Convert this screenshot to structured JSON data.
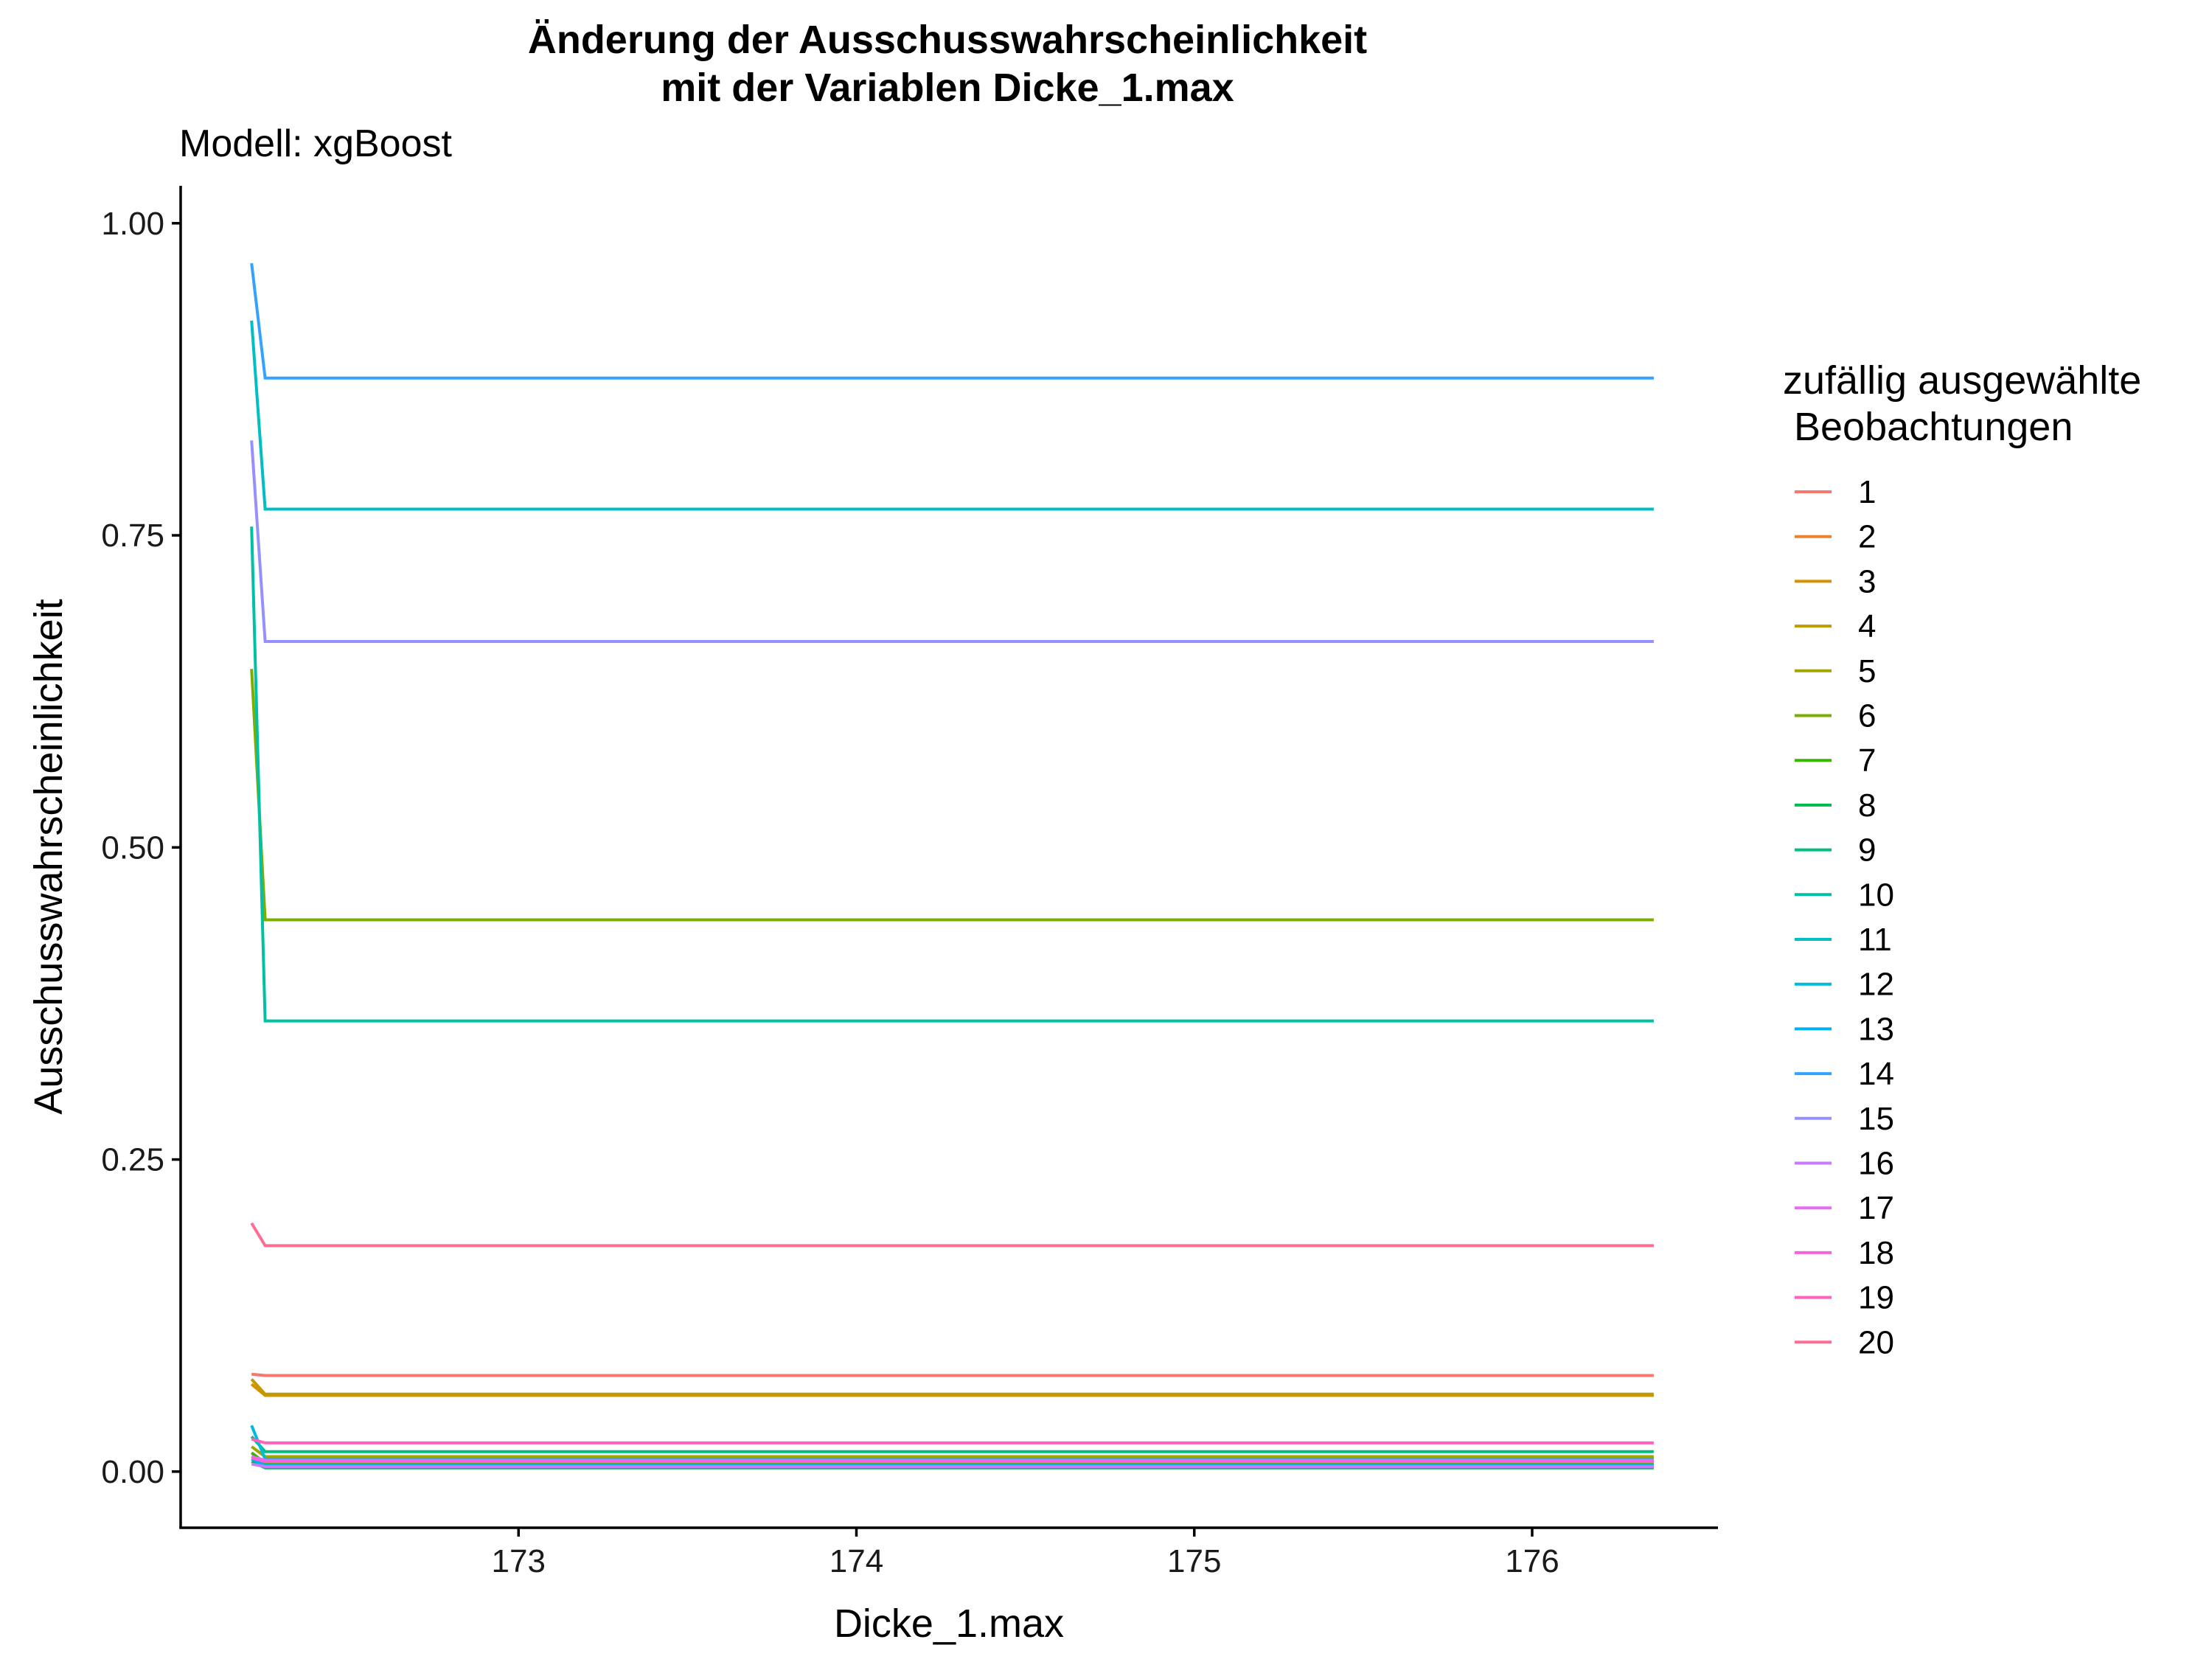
{
  "chart_data": {
    "type": "line",
    "title_lines": [
      "Änderung der Ausschusswahrscheinlichkeit",
      "mit der Variablen Dicke_1.max"
    ],
    "subtitle": "Modell: xgBoost",
    "xlabel": "Dicke_1.max",
    "ylabel": "Ausschusswahrscheinlichkeit",
    "xlim": [
      172.0,
      176.55
    ],
    "ylim": [
      -0.045,
      1.03
    ],
    "x_ticks": [
      173,
      174,
      175,
      176
    ],
    "x_tick_labels": [
      "173",
      "174",
      "175",
      "176"
    ],
    "y_ticks": [
      0.0,
      0.25,
      0.5,
      0.75,
      1.0
    ],
    "y_tick_labels": [
      "0.00",
      "0.25",
      "0.50",
      "0.75",
      "1.00"
    ],
    "grid": false,
    "legend_position": "right",
    "legend_title_lines": [
      "zufällig ausgewählte",
      " Beobachtungen"
    ],
    "x": [
      172.21,
      172.25,
      176.36
    ],
    "series": [
      {
        "name": "1",
        "color": "#F8766D",
        "values": [
          0.078,
          0.077,
          0.077
        ]
      },
      {
        "name": "2",
        "color": "#EA8331",
        "values": [
          0.012,
          0.006,
          0.006
        ]
      },
      {
        "name": "3",
        "color": "#D89000",
        "values": [
          0.07,
          0.061,
          0.061
        ]
      },
      {
        "name": "4",
        "color": "#C09B00",
        "values": [
          0.074,
          0.062,
          0.062
        ]
      },
      {
        "name": "5",
        "color": "#A3A500",
        "values": [
          0.02,
          0.012,
          0.012
        ]
      },
      {
        "name": "6",
        "color": "#7CAE00",
        "values": [
          0.643,
          0.442,
          0.442
        ]
      },
      {
        "name": "7",
        "color": "#39B600",
        "values": [
          0.015,
          0.007,
          0.007
        ]
      },
      {
        "name": "8",
        "color": "#00BB4E",
        "values": [
          0.008,
          0.003,
          0.003
        ]
      },
      {
        "name": "9",
        "color": "#00BF7D",
        "values": [
          0.028,
          0.016,
          0.016
        ]
      },
      {
        "name": "10",
        "color": "#00C1A3",
        "values": [
          0.757,
          0.361,
          0.361
        ]
      },
      {
        "name": "11",
        "color": "#00BFC4",
        "values": [
          0.922,
          0.771,
          0.771
        ]
      },
      {
        "name": "12",
        "color": "#00BAE0",
        "values": [
          0.037,
          0.01,
          0.01
        ]
      },
      {
        "name": "13",
        "color": "#00B0F6",
        "values": [
          0.01,
          0.005,
          0.005
        ]
      },
      {
        "name": "14",
        "color": "#35A2FF",
        "values": [
          0.968,
          0.876,
          0.876
        ]
      },
      {
        "name": "15",
        "color": "#9590FF",
        "values": [
          0.826,
          0.665,
          0.665
        ]
      },
      {
        "name": "16",
        "color": "#C77CFF",
        "values": [
          0.006,
          0.004,
          0.004
        ]
      },
      {
        "name": "17",
        "color": "#E76BF3",
        "values": [
          0.012,
          0.009,
          0.009
        ]
      },
      {
        "name": "18",
        "color": "#FA62DB",
        "values": [
          0.011,
          0.008,
          0.008
        ]
      },
      {
        "name": "19",
        "color": "#FF62BC",
        "values": [
          0.026,
          0.023,
          0.023
        ]
      },
      {
        "name": "20",
        "color": "#FF6C91",
        "values": [
          0.199,
          0.181,
          0.181
        ]
      }
    ]
  }
}
